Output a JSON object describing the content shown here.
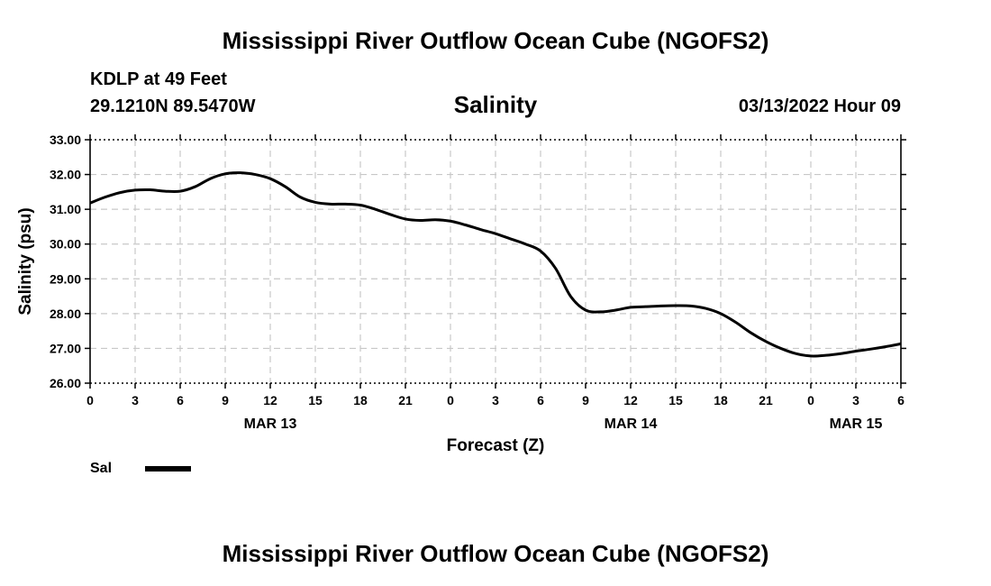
{
  "header": {
    "title": "Mississippi River Outflow Ocean Cube (NGOFS2)",
    "station": "KDLP at 49 Feet",
    "coordinates": "29.1210N  89.5470W",
    "date": "03/13/2022 Hour 09"
  },
  "footer": {
    "title": "Mississippi River Outflow Ocean Cube (NGOFS2)"
  },
  "chart_data": {
    "type": "line",
    "title": "Salinity",
    "xlabel": "Forecast (Z)",
    "ylabel": "Salinity (psu)",
    "ylim": [
      26.0,
      33.0
    ],
    "xlim": [
      0,
      54
    ],
    "grid": true,
    "yticks": [
      "26.00",
      "27.00",
      "28.00",
      "29.00",
      "30.00",
      "31.00",
      "32.00",
      "33.00"
    ],
    "xticks": [
      "0",
      "3",
      "6",
      "9",
      "12",
      "15",
      "18",
      "21",
      "0",
      "3",
      "6",
      "9",
      "12",
      "15",
      "18",
      "21",
      "0",
      "3",
      "6"
    ],
    "day_labels": [
      {
        "label": "MAR 13",
        "hour": 12
      },
      {
        "label": "MAR 14",
        "hour": 36
      },
      {
        "label": "MAR 15",
        "hour": 51
      }
    ],
    "series": [
      {
        "name": "Sal",
        "color": "#000000",
        "x": [
          0,
          1,
          2,
          3,
          4,
          5,
          6,
          7,
          8,
          9,
          10,
          11,
          12,
          13,
          14,
          15,
          16,
          17,
          18,
          19,
          20,
          21,
          22,
          23,
          24,
          25,
          26,
          27,
          28,
          29,
          30,
          31,
          32,
          33,
          34,
          35,
          36,
          37,
          38,
          39,
          40,
          41,
          42,
          43,
          44,
          45,
          46,
          47,
          48,
          49,
          50,
          51,
          52,
          53,
          54
        ],
        "values": [
          31.18,
          31.35,
          31.48,
          31.55,
          31.56,
          31.52,
          31.52,
          31.65,
          31.88,
          32.02,
          32.05,
          32.0,
          31.88,
          31.65,
          31.35,
          31.2,
          31.15,
          31.15,
          31.12,
          31.0,
          30.85,
          30.72,
          30.68,
          30.7,
          30.66,
          30.55,
          30.42,
          30.3,
          30.15,
          30.0,
          29.8,
          29.3,
          28.5,
          28.1,
          28.05,
          28.1,
          28.18,
          28.2,
          28.22,
          28.23,
          28.22,
          28.15,
          28.0,
          27.75,
          27.45,
          27.2,
          27.0,
          26.85,
          26.78,
          26.8,
          26.85,
          26.92,
          26.98,
          27.05,
          27.13
        ]
      }
    ],
    "legend": {
      "position": "bottom-left"
    }
  }
}
